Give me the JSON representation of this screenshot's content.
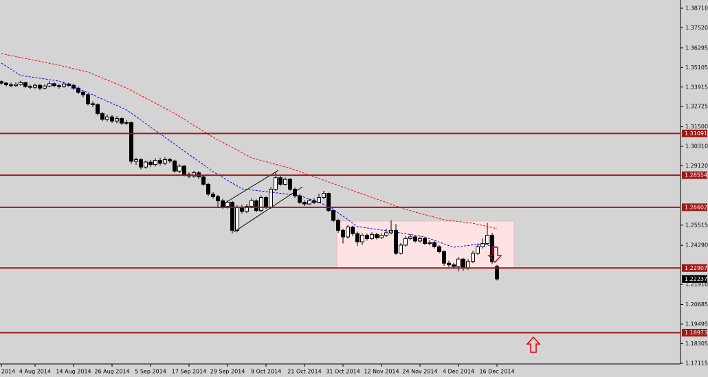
{
  "chart_data": {
    "type": "candlestick",
    "categories": [
      "2014",
      null,
      null,
      null,
      null,
      null,
      null,
      "4 Aug 2014",
      null,
      null,
      null,
      null,
      null,
      null,
      null,
      "14 Aug 2014",
      null,
      null,
      null,
      null,
      null,
      null,
      null,
      "26 Aug 2014",
      null,
      null,
      null,
      null,
      null,
      null,
      null,
      "5 Sep 2014",
      null,
      null,
      null,
      null,
      null,
      null,
      null,
      "17 Sep 2014",
      null,
      null,
      null,
      null,
      null,
      null,
      null,
      "29 Sep 2014",
      null,
      null,
      null,
      null,
      null,
      null,
      null,
      "9 Oct 2014",
      null,
      null,
      null,
      null,
      null,
      null,
      null,
      "21 Oct 2014",
      null,
      null,
      null,
      null,
      null,
      null,
      null,
      "31 Oct 2014",
      null,
      null,
      null,
      null,
      null,
      null,
      null,
      "12 Nov 2014",
      null,
      null,
      null,
      null,
      null,
      null,
      null,
      "24 Nov 2014",
      null,
      null,
      null,
      null,
      null,
      null,
      null,
      "4 Dec 2014",
      null,
      null,
      null,
      null,
      null,
      null,
      null,
      "16 Dec 2014"
    ],
    "series": [
      {
        "up_color": "#ffffff",
        "down_color": "#000000",
        "open": [
          1.3425,
          1.3415,
          1.3405,
          1.34,
          1.3408,
          1.3418,
          1.3395,
          1.339,
          1.3402,
          1.3385,
          1.3398,
          1.3412,
          1.34,
          1.3395,
          1.341,
          1.3402,
          1.3385,
          1.336,
          1.3345,
          1.329,
          1.3285,
          1.323,
          1.3195,
          1.321,
          1.3185,
          1.32,
          1.3172,
          1.3175,
          1.294,
          1.295,
          1.2905,
          1.2935,
          1.292,
          1.2945,
          1.2928,
          1.295,
          1.2942,
          1.288,
          1.291,
          1.286,
          1.285,
          1.287,
          1.2845,
          1.28,
          1.274,
          1.2725,
          1.27,
          1.2665,
          1.269,
          1.252,
          1.266,
          1.2635,
          1.2665,
          1.27,
          1.264,
          1.272,
          1.266,
          1.277,
          1.284,
          1.28,
          1.283,
          1.277,
          1.273,
          1.269,
          1.268,
          1.27,
          1.269,
          1.272,
          1.2745,
          1.264,
          1.258,
          1.252,
          1.248,
          1.254,
          1.25,
          1.245,
          1.249,
          1.247,
          1.2495,
          1.2475,
          1.249,
          1.2505,
          1.252,
          1.238,
          1.243,
          1.247,
          1.248,
          1.2455,
          1.247,
          1.244,
          1.2445,
          1.242,
          1.239,
          1.232,
          1.231,
          1.23,
          1.2345,
          1.229,
          1.233,
          1.238,
          1.242,
          1.244,
          1.249,
          1.23
        ],
        "high": [
          1.3432,
          1.3424,
          1.3418,
          1.342,
          1.343,
          1.3425,
          1.3405,
          1.3412,
          1.341,
          1.3408,
          1.3428,
          1.342,
          1.341,
          1.3425,
          1.3418,
          1.3412,
          1.3395,
          1.3372,
          1.3352,
          1.3305,
          1.3292,
          1.324,
          1.3225,
          1.3222,
          1.3215,
          1.3208,
          1.319,
          1.3182,
          1.2962,
          1.2958,
          1.2945,
          1.2948,
          1.2958,
          1.2962,
          1.2965,
          1.296,
          1.295,
          1.2922,
          1.2918,
          1.2872,
          1.2882,
          1.288,
          1.2852,
          1.2808,
          1.2752,
          1.2735,
          1.2712,
          1.2702,
          1.2698,
          1.2672,
          1.2675,
          1.268,
          1.2715,
          1.2708,
          1.2732,
          1.2728,
          1.2782,
          1.2875,
          1.2855,
          1.2842,
          1.2838,
          1.278,
          1.274,
          1.2702,
          1.2712,
          1.2715,
          1.2742,
          1.276,
          1.275,
          1.2648,
          1.259,
          1.253,
          1.2552,
          1.2548,
          1.2512,
          1.2502,
          1.25,
          1.2508,
          1.2505,
          1.2502,
          1.253,
          1.258,
          1.2558,
          1.2442,
          1.2485,
          1.2498,
          1.249,
          1.2482,
          1.248,
          1.246,
          1.2455,
          1.243,
          1.2398,
          1.2335,
          1.2322,
          1.2358,
          1.2352,
          1.2345,
          1.2395,
          1.244,
          1.247,
          1.2565,
          1.2505,
          1.231
        ],
        "low": [
          1.3405,
          1.3396,
          1.339,
          1.3392,
          1.34,
          1.3385,
          1.3378,
          1.338,
          1.3372,
          1.3376,
          1.339,
          1.3391,
          1.3382,
          1.3388,
          1.3392,
          1.3375,
          1.335,
          1.333,
          1.328,
          1.327,
          1.3218,
          1.3185,
          1.3182,
          1.3172,
          1.317,
          1.3162,
          1.316,
          1.2925,
          1.2918,
          1.289,
          1.2895,
          1.2905,
          1.2908,
          1.2915,
          1.2918,
          1.293,
          1.287,
          1.2868,
          1.2848,
          1.2838,
          1.284,
          1.2832,
          1.279,
          1.2728,
          1.2712,
          1.2655,
          1.265,
          1.2652,
          1.2502,
          1.2508,
          1.2622,
          1.2625,
          1.2655,
          1.263,
          1.2632,
          1.265,
          1.2652,
          1.276,
          1.279,
          1.2792,
          1.276,
          1.2718,
          1.268,
          1.2668,
          1.2672,
          1.268,
          1.2685,
          1.271,
          1.263,
          1.257,
          1.2505,
          1.244,
          1.247,
          1.2485,
          1.2425,
          1.243,
          1.2458,
          1.2462,
          1.2465,
          1.2468,
          1.248,
          1.2495,
          1.237,
          1.2372,
          1.242,
          1.246,
          1.2445,
          1.2445,
          1.243,
          1.2428,
          1.241,
          1.238,
          1.2305,
          1.2295,
          1.2285,
          1.227,
          1.2275,
          1.228,
          1.232,
          1.237,
          1.241,
          1.243,
          1.2315,
          1.2215
        ],
        "close": [
          1.3415,
          1.3405,
          1.34,
          1.3408,
          1.3418,
          1.3395,
          1.339,
          1.3402,
          1.3385,
          1.3398,
          1.3412,
          1.34,
          1.3395,
          1.341,
          1.3402,
          1.3385,
          1.336,
          1.3345,
          1.329,
          1.3285,
          1.323,
          1.3195,
          1.321,
          1.3185,
          1.32,
          1.3172,
          1.3175,
          1.294,
          1.295,
          1.2905,
          1.2935,
          1.292,
          1.2945,
          1.2928,
          1.295,
          1.2942,
          1.288,
          1.291,
          1.286,
          1.285,
          1.287,
          1.2845,
          1.28,
          1.274,
          1.2725,
          1.27,
          1.2665,
          1.269,
          1.252,
          1.266,
          1.2635,
          1.2665,
          1.27,
          1.264,
          1.272,
          1.266,
          1.277,
          1.284,
          1.28,
          1.283,
          1.277,
          1.273,
          1.269,
          1.268,
          1.27,
          1.269,
          1.272,
          1.2745,
          1.264,
          1.258,
          1.252,
          1.248,
          1.254,
          1.25,
          1.245,
          1.249,
          1.247,
          1.2495,
          1.2475,
          1.249,
          1.2505,
          1.252,
          1.238,
          1.243,
          1.247,
          1.248,
          1.2455,
          1.247,
          1.244,
          1.2445,
          1.242,
          1.239,
          1.232,
          1.231,
          1.23,
          1.2345,
          1.229,
          1.233,
          1.238,
          1.242,
          1.244,
          1.249,
          1.233,
          1.2224
        ]
      },
      {
        "color": "#0000ff",
        "style": "dashed",
        "x": [
          0,
          4,
          12,
          18,
          26,
          36,
          44,
          50,
          56,
          62,
          68,
          74,
          82,
          88,
          94,
          100,
          103
        ],
        "values": [
          1.3537,
          1.3462,
          1.3428,
          1.3357,
          1.3253,
          1.3044,
          1.2877,
          1.2772,
          1.2752,
          1.2731,
          1.2668,
          1.2543,
          1.2509,
          1.248,
          1.2417,
          1.2438,
          1.2417
        ]
      },
      {
        "color": "#ff0000",
        "style": "dashed",
        "x": [
          0,
          12,
          18,
          26,
          36,
          44,
          52,
          60,
          68,
          76,
          84,
          92,
          98,
          103
        ],
        "values": [
          1.3595,
          1.3524,
          1.3483,
          1.3386,
          1.3232,
          1.3086,
          1.2961,
          1.2898,
          1.2814,
          1.2731,
          1.2647,
          1.2584,
          1.2563,
          1.253
        ]
      }
    ],
    "levels": [
      1.31091,
      1.28554,
      1.26602,
      1.22907,
      1.18973
    ],
    "level_color": "#a01818",
    "last_price": 1.22237,
    "ylim": [
      1.1707,
      1.3921
    ],
    "yticks": [
      {
        "value": 1.3871,
        "label": "1.38710"
      },
      {
        "value": 1.3752,
        "label": "1.37520"
      },
      1.36295,
      {
        "value": 1.35105,
        "label": "1.35105"
      },
      1.33915,
      1.32725,
      {
        "value": 1.315,
        "label": "1.31500"
      },
      {
        "value": 1.3031,
        "label": "1.30310"
      },
      {
        "value": 1.2912,
        "label": "1.29120"
      },
      1.25515,
      {
        "value": 1.2429,
        "label": "1.24290"
      },
      {
        "value": 1.2191,
        "label": "1.21910"
      },
      1.20685,
      1.19495,
      1.18305,
      1.17115
    ]
  }
}
